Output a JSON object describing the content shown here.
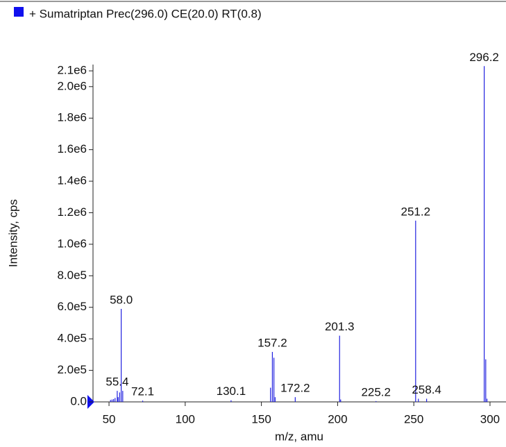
{
  "chart_data": {
    "type": "spectrum",
    "legend": "+ Sumatriptan Prec(296.0) CE(20.0) RT(0.8)",
    "xlabel": "m/z, amu",
    "ylabel": "Intensity, cps",
    "color": "#2020e0",
    "legend_color": "#1010ee",
    "xlim": [
      39.5,
      310.5
    ],
    "xticks": [
      50,
      100,
      150,
      200,
      250,
      300
    ],
    "ylim": [
      0,
      2140000
    ],
    "yticks": [
      {
        "value": 0,
        "label": "0.0"
      },
      {
        "value": 200000,
        "label": "2.0e5"
      },
      {
        "value": 400000,
        "label": "4.0e5"
      },
      {
        "value": 600000,
        "label": "6.0e5"
      },
      {
        "value": 800000,
        "label": "8.0e5"
      },
      {
        "value": 1000000,
        "label": "1.0e6"
      },
      {
        "value": 1200000,
        "label": "1.2e6"
      },
      {
        "value": 1400000,
        "label": "1.4e6"
      },
      {
        "value": 1600000,
        "label": "1.6e6"
      },
      {
        "value": 1800000,
        "label": "1.8e6"
      },
      {
        "value": 2000000,
        "label": "2.0e6"
      },
      {
        "value": 2100000,
        "label": "2.1e6"
      }
    ],
    "x": [
      51,
      52,
      53,
      54,
      55.4,
      56,
      57,
      58.0,
      59,
      72.1,
      130.1,
      156,
      157.2,
      158.2,
      159,
      172.2,
      201.3,
      202,
      225.2,
      251.2,
      253,
      258.4,
      296.2,
      297.2,
      298
    ],
    "values": [
      12000,
      15000,
      18000,
      25000,
      70000,
      30000,
      60000,
      590000,
      70000,
      8000,
      10000,
      90000,
      317000,
      280000,
      30000,
      30000,
      420000,
      15000,
      5000,
      1150000,
      20000,
      20000,
      2130000,
      270000,
      20000
    ],
    "peak_labels": [
      null,
      null,
      null,
      null,
      "55.4",
      null,
      null,
      "58.0",
      null,
      "72.1",
      "130.1",
      null,
      "157.2",
      null,
      null,
      "172.2",
      "201.3",
      null,
      "225.2",
      "251.2",
      null,
      "258.4",
      "296.2",
      null,
      null
    ]
  }
}
